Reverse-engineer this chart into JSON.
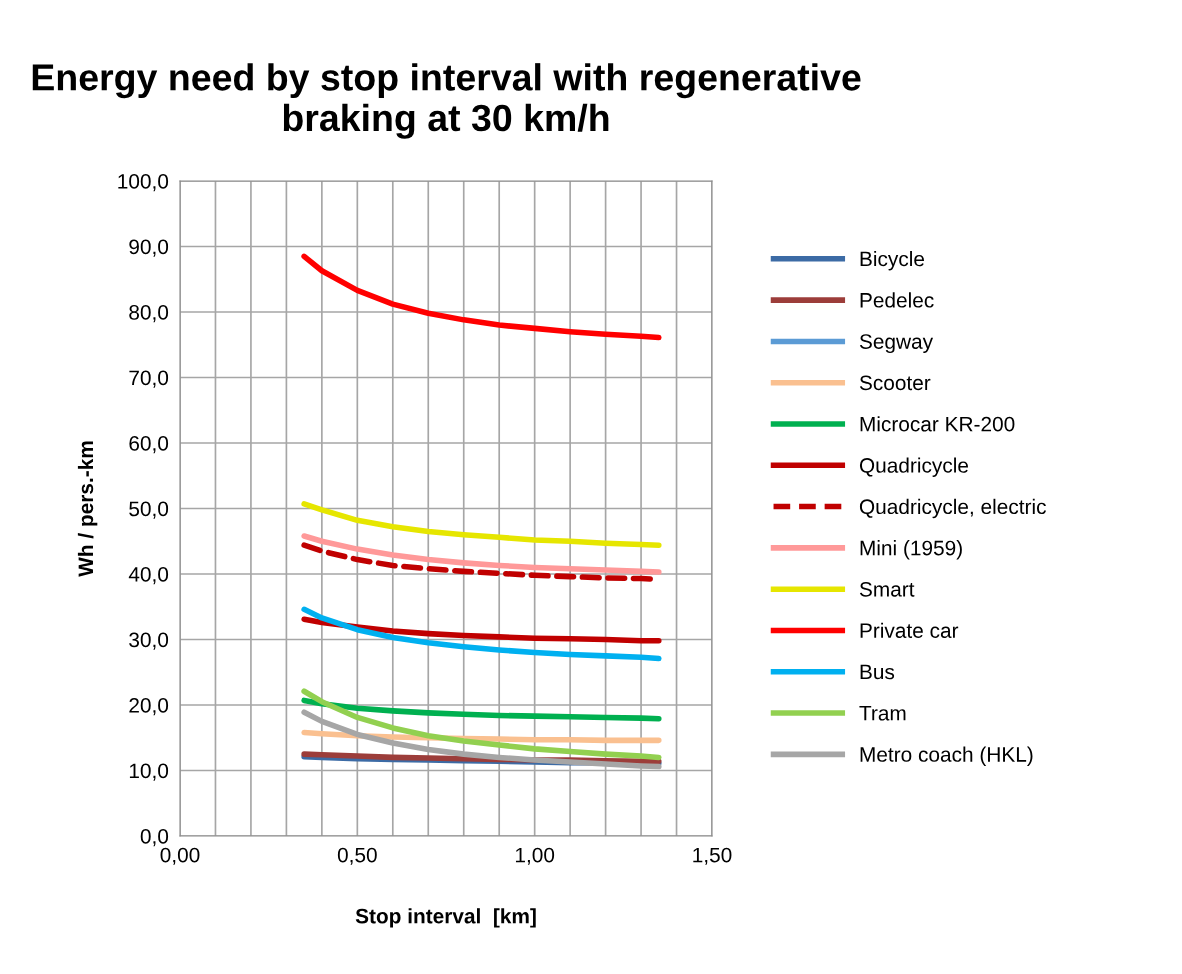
{
  "chart_data": {
    "type": "line",
    "title": "Energy need by stop interval with regenerative braking at 30 km/h",
    "xlabel": "Stop interval  [km]",
    "ylabel": "Wh / pers.-km",
    "x": [
      0.35,
      0.4,
      0.5,
      0.6,
      0.7,
      0.8,
      0.9,
      1.0,
      1.1,
      1.2,
      1.3,
      1.35
    ],
    "series": [
      {
        "name": "Bicycle",
        "color": "#3c6ba5",
        "values": [
          12.1,
          12.0,
          11.8,
          11.7,
          11.6,
          11.5,
          11.4,
          11.3,
          11.2,
          11.2,
          11.1,
          11.1
        ]
      },
      {
        "name": "Pedelec",
        "color": "#9c3d3a",
        "values": [
          12.5,
          12.4,
          12.2,
          12.0,
          11.9,
          11.8,
          11.7,
          11.6,
          11.6,
          11.5,
          11.4,
          11.4
        ]
      },
      {
        "name": "Segway",
        "color": "#5b9bd5",
        "values": [
          null,
          null,
          null,
          null,
          null,
          null,
          null,
          null,
          null,
          null,
          null,
          null
        ]
      },
      {
        "name": "Scooter",
        "color": "#fac090",
        "values": [
          15.8,
          15.6,
          15.3,
          15.1,
          15.0,
          14.9,
          14.8,
          14.7,
          14.7,
          14.6,
          14.6,
          14.6
        ]
      },
      {
        "name": "Microcar KR-200",
        "color": "#00b050",
        "values": [
          20.7,
          20.2,
          19.5,
          19.1,
          18.8,
          18.6,
          18.4,
          18.3,
          18.2,
          18.1,
          18.0,
          17.9
        ]
      },
      {
        "name": "Quadricycle",
        "color": "#c00000",
        "values": [
          33.1,
          32.6,
          31.9,
          31.3,
          30.9,
          30.6,
          30.4,
          30.2,
          30.1,
          30.0,
          29.8,
          29.8
        ]
      },
      {
        "name": "Quadricycle, electric",
        "color": "#c00000",
        "line_style": "dashed",
        "values": [
          44.4,
          43.5,
          42.2,
          41.3,
          40.8,
          40.4,
          40.1,
          39.8,
          39.6,
          39.4,
          39.3,
          39.2
        ]
      },
      {
        "name": "Mini (1959)",
        "color": "#ff9999",
        "values": [
          45.8,
          45.0,
          43.8,
          42.9,
          42.2,
          41.7,
          41.3,
          41.0,
          40.8,
          40.6,
          40.4,
          40.3
        ]
      },
      {
        "name": "Smart",
        "color": "#e6e600",
        "values": [
          50.7,
          49.8,
          48.2,
          47.2,
          46.5,
          46.0,
          45.6,
          45.2,
          45.0,
          44.7,
          44.5,
          44.4
        ]
      },
      {
        "name": "Private car",
        "color": "#ff0000",
        "values": [
          88.5,
          86.3,
          83.3,
          81.2,
          79.8,
          78.8,
          78.0,
          77.5,
          77.0,
          76.6,
          76.3,
          76.1
        ]
      },
      {
        "name": "Bus",
        "color": "#00b0f0",
        "values": [
          34.6,
          33.3,
          31.5,
          30.3,
          29.5,
          28.9,
          28.4,
          28.0,
          27.7,
          27.5,
          27.3,
          27.1
        ]
      },
      {
        "name": "Tram",
        "color": "#92d050",
        "values": [
          22.1,
          20.5,
          18.1,
          16.5,
          15.3,
          14.5,
          13.9,
          13.3,
          12.9,
          12.5,
          12.2,
          12.0
        ]
      },
      {
        "name": "Metro coach (HKL)",
        "color": "#a6a6a6",
        "values": [
          18.9,
          17.5,
          15.5,
          14.2,
          13.2,
          12.5,
          12.0,
          11.6,
          11.3,
          11.0,
          10.7,
          10.6
        ]
      }
    ],
    "xlim": [
      0,
      1.5
    ],
    "xticks": [
      {
        "value": 0,
        "label": "0,00"
      },
      {
        "value": 0.1,
        "label": null
      },
      {
        "value": 0.2,
        "label": null
      },
      {
        "value": 0.3,
        "label": null
      },
      {
        "value": 0.4,
        "label": null
      },
      {
        "value": 0.5,
        "label": "0,50"
      },
      {
        "value": 0.6,
        "label": null
      },
      {
        "value": 0.7,
        "label": null
      },
      {
        "value": 0.8,
        "label": null
      },
      {
        "value": 0.9,
        "label": null
      },
      {
        "value": 1.0,
        "label": "1,00"
      },
      {
        "value": 1.1,
        "label": null
      },
      {
        "value": 1.2,
        "label": null
      },
      {
        "value": 1.3,
        "label": null
      },
      {
        "value": 1.4,
        "label": null
      },
      {
        "value": 1.5,
        "label": "1,50"
      }
    ],
    "ylim": [
      0,
      100
    ],
    "yticks": [
      {
        "value": 0,
        "label": "0,0"
      },
      {
        "value": 10,
        "label": "10,0"
      },
      {
        "value": 20,
        "label": "20,0"
      },
      {
        "value": 30,
        "label": "30,0"
      },
      {
        "value": 40,
        "label": "40,0"
      },
      {
        "value": 50,
        "label": "50,0"
      },
      {
        "value": 60,
        "label": "60,0"
      },
      {
        "value": 70,
        "label": "70,0"
      },
      {
        "value": 80,
        "label": "80,0"
      },
      {
        "value": 90,
        "label": "90,0"
      },
      {
        "value": 100,
        "label": "100,0"
      }
    ],
    "grid": true,
    "legend": "right",
    "marker": "none",
    "line_style": "solid"
  }
}
